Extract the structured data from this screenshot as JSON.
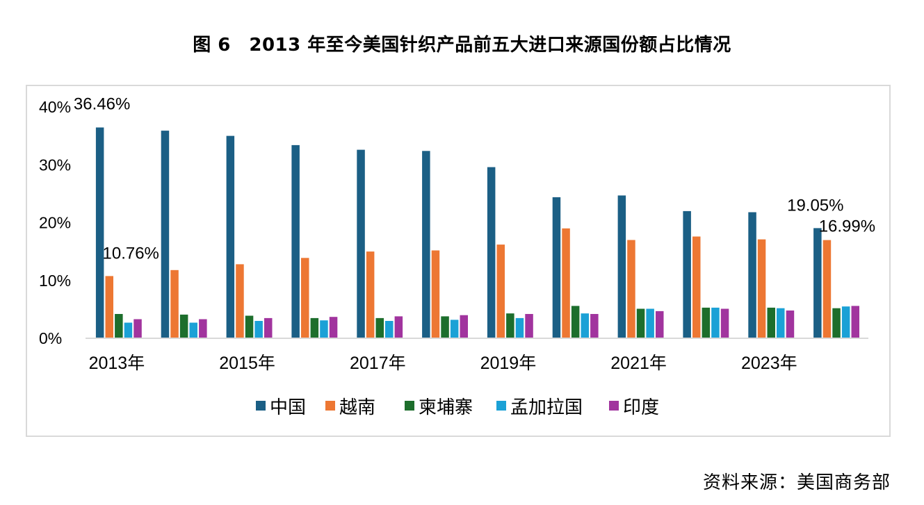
{
  "header": {
    "title": "图 6　2013 年至今美国针织产品前五大进口来源国份额占比情况"
  },
  "footer": {
    "source": "资料来源：美国商务部"
  },
  "chart_data": {
    "type": "bar",
    "title": "",
    "xlabel": "",
    "ylabel": "",
    "ylim": [
      0,
      40
    ],
    "y_ticks": [
      "0%",
      "10%",
      "20%",
      "30%",
      "40%"
    ],
    "categories": [
      "2013年",
      "2014年",
      "2015年",
      "2016年",
      "2017年",
      "2018年",
      "2019年",
      "2020年",
      "2021年",
      "2022年",
      "2023年",
      "2024年"
    ],
    "x_tick_labels": [
      "2013年",
      "",
      "2015年",
      "",
      "2017年",
      "",
      "2019年",
      "",
      "2021年",
      "",
      "2023年",
      ""
    ],
    "grid": false,
    "legend_position": "bottom",
    "series": [
      {
        "name": "中国",
        "color": "#1b5f85",
        "values": [
          36.46,
          35.9,
          35.0,
          33.4,
          32.6,
          32.4,
          29.6,
          24.4,
          24.7,
          22.0,
          21.8,
          19.05
        ]
      },
      {
        "name": "越南",
        "color": "#ed7733",
        "values": [
          10.76,
          11.8,
          12.8,
          13.9,
          15.0,
          15.2,
          16.2,
          19.0,
          17.0,
          17.6,
          17.1,
          16.99
        ]
      },
      {
        "name": "柬埔寨",
        "color": "#1d6e2c",
        "values": [
          4.2,
          4.1,
          3.9,
          3.5,
          3.5,
          3.8,
          4.3,
          5.6,
          5.1,
          5.3,
          5.3,
          5.2
        ]
      },
      {
        "name": "孟加拉国",
        "color": "#1ba1d6",
        "values": [
          2.7,
          2.7,
          3.0,
          3.1,
          3.0,
          3.2,
          3.5,
          4.3,
          5.1,
          5.3,
          5.2,
          5.5
        ]
      },
      {
        "name": "印度",
        "color": "#a1349e",
        "values": [
          3.3,
          3.3,
          3.5,
          3.7,
          3.8,
          4.0,
          4.2,
          4.2,
          4.7,
          5.1,
          4.8,
          5.6
        ]
      }
    ],
    "data_labels": [
      {
        "series": 0,
        "index": 0,
        "text": "36.46%"
      },
      {
        "series": 1,
        "index": 0,
        "text": "10.76%"
      },
      {
        "series": 0,
        "index": 11,
        "text": "19.05%"
      },
      {
        "series": 1,
        "index": 11,
        "text": "16.99%"
      }
    ]
  }
}
